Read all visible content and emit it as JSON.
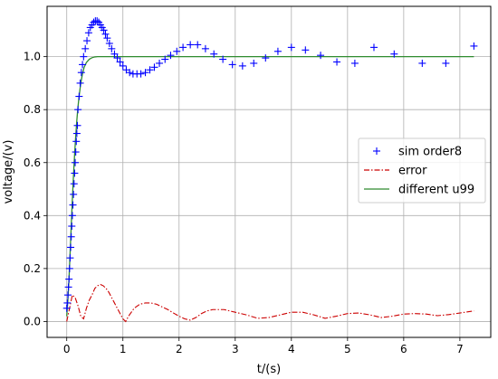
{
  "chart_data": {
    "type": "line",
    "xlabel": "t/(s)",
    "ylabel": "voltage/(v)",
    "xlim": [
      -0.35,
      7.55
    ],
    "ylim": [
      -0.06,
      1.19
    ],
    "xticks": [
      0,
      1,
      2,
      3,
      4,
      5,
      6,
      7
    ],
    "xtick_labels": [
      "0",
      "1",
      "2",
      "3",
      "4",
      "5",
      "6",
      "7"
    ],
    "yticks": [
      0.0,
      0.2,
      0.4,
      0.6,
      0.8,
      1.0
    ],
    "ytick_labels": [
      "0.0",
      "0.2",
      "0.4",
      "0.6",
      "0.8",
      "1.0"
    ],
    "grid": true,
    "legend_position": "center-right",
    "series": [
      {
        "name": "sim order8",
        "style": "markers-plus",
        "color": "#0000ff",
        "x": [
          0.0,
          0.01,
          0.02,
          0.03,
          0.04,
          0.05,
          0.06,
          0.07,
          0.08,
          0.09,
          0.1,
          0.11,
          0.12,
          0.13,
          0.14,
          0.15,
          0.16,
          0.17,
          0.18,
          0.19,
          0.2,
          0.22,
          0.24,
          0.26,
          0.28,
          0.3,
          0.33,
          0.36,
          0.39,
          0.42,
          0.45,
          0.48,
          0.51,
          0.54,
          0.57,
          0.6,
          0.63,
          0.66,
          0.69,
          0.72,
          0.76,
          0.8,
          0.85,
          0.9,
          0.95,
          1.0,
          1.06,
          1.12,
          1.18,
          1.25,
          1.32,
          1.4,
          1.48,
          1.56,
          1.65,
          1.75,
          1.85,
          1.96,
          2.07,
          2.2,
          2.33,
          2.47,
          2.62,
          2.78,
          2.95,
          3.13,
          3.33,
          3.54,
          3.76,
          4.0,
          4.25,
          4.52,
          4.81,
          5.13,
          5.47,
          5.83,
          6.33,
          6.75,
          7.25
        ],
        "y": [
          0.05,
          0.07,
          0.1,
          0.13,
          0.16,
          0.2,
          0.24,
          0.28,
          0.32,
          0.36,
          0.4,
          0.44,
          0.48,
          0.52,
          0.56,
          0.6,
          0.64,
          0.68,
          0.71,
          0.74,
          0.8,
          0.85,
          0.9,
          0.94,
          0.97,
          1.0,
          1.03,
          1.06,
          1.09,
          1.11,
          1.12,
          1.13,
          1.135,
          1.135,
          1.13,
          1.12,
          1.11,
          1.1,
          1.085,
          1.07,
          1.05,
          1.03,
          1.01,
          0.995,
          0.98,
          0.965,
          0.95,
          0.94,
          0.935,
          0.935,
          0.935,
          0.94,
          0.95,
          0.96,
          0.975,
          0.99,
          1.005,
          1.02,
          1.035,
          1.045,
          1.045,
          1.03,
          1.01,
          0.99,
          0.97,
          0.965,
          0.975,
          0.995,
          1.02,
          1.035,
          1.025,
          1.005,
          0.98,
          0.975,
          1.035,
          1.01,
          0.975,
          0.975,
          1.04
        ]
      },
      {
        "name": "error",
        "style": "dash-dot",
        "color": "#cc0000",
        "x": [
          0.0,
          0.05,
          0.1,
          0.15,
          0.2,
          0.25,
          0.3,
          0.35,
          0.4,
          0.45,
          0.5,
          0.55,
          0.6,
          0.65,
          0.7,
          0.75,
          0.8,
          0.85,
          0.9,
          0.95,
          1.0,
          1.05,
          1.1,
          1.15,
          1.2,
          1.3,
          1.4,
          1.5,
          1.6,
          1.7,
          1.8,
          1.9,
          2.0,
          2.1,
          2.2,
          2.3,
          2.4,
          2.5,
          2.6,
          2.8,
          3.0,
          3.2,
          3.4,
          3.6,
          3.8,
          4.0,
          4.2,
          4.4,
          4.6,
          4.8,
          5.0,
          5.2,
          5.4,
          5.6,
          5.8,
          6.0,
          6.2,
          6.4,
          6.6,
          6.8,
          7.0,
          7.25
        ],
        "y": [
          0.0,
          0.05,
          0.1,
          0.09,
          0.06,
          0.02,
          0.01,
          0.05,
          0.08,
          0.1,
          0.125,
          0.135,
          0.14,
          0.135,
          0.125,
          0.11,
          0.09,
          0.07,
          0.05,
          0.03,
          0.01,
          0.0,
          0.02,
          0.035,
          0.05,
          0.065,
          0.07,
          0.07,
          0.065,
          0.055,
          0.045,
          0.032,
          0.02,
          0.01,
          0.005,
          0.015,
          0.03,
          0.04,
          0.045,
          0.045,
          0.035,
          0.025,
          0.012,
          0.015,
          0.025,
          0.035,
          0.035,
          0.025,
          0.012,
          0.02,
          0.03,
          0.032,
          0.025,
          0.015,
          0.02,
          0.028,
          0.03,
          0.028,
          0.022,
          0.026,
          0.032,
          0.04
        ]
      },
      {
        "name": "different u99",
        "style": "solid",
        "color": "#2e8b2e",
        "x": [
          0.0,
          0.02,
          0.04,
          0.06,
          0.08,
          0.1,
          0.12,
          0.14,
          0.16,
          0.18,
          0.2,
          0.22,
          0.25,
          0.28,
          0.31,
          0.35,
          0.4,
          0.45,
          0.5,
          0.55,
          0.6,
          0.7,
          0.8,
          1.0,
          1.5,
          2.0,
          3.0,
          4.0,
          5.0,
          6.0,
          7.0,
          7.25
        ],
        "y": [
          0.02,
          0.08,
          0.16,
          0.26,
          0.36,
          0.46,
          0.55,
          0.63,
          0.7,
          0.76,
          0.81,
          0.85,
          0.9,
          0.935,
          0.96,
          0.978,
          0.99,
          0.996,
          0.999,
          1.0,
          1.0,
          1.0,
          1.0,
          1.0,
          1.0,
          1.0,
          1.0,
          1.0,
          1.0,
          1.0,
          1.0,
          1.0
        ]
      }
    ]
  }
}
